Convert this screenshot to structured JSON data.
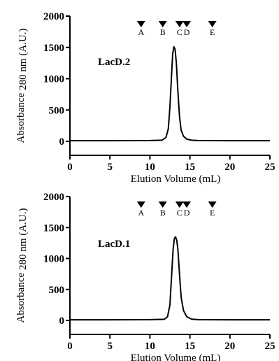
{
  "chart_data": [
    {
      "type": "line",
      "label": "LacD.2",
      "xlabel": "Elution Volume (mL)",
      "ylabel_main": "Absorbance",
      "ylabel_unit": "280 nm (A.U.)",
      "xlim": [
        0,
        25
      ],
      "ylim": [
        0,
        2000
      ],
      "x_ticks": [
        0,
        5,
        10,
        15,
        20,
        25
      ],
      "y_ticks": [
        0,
        500,
        1000,
        1500,
        2000
      ],
      "grid": false,
      "markers": [
        {
          "label": "A",
          "x": 8.9
        },
        {
          "label": "B",
          "x": 11.6
        },
        {
          "label": "C",
          "x": 13.7
        },
        {
          "label": "D",
          "x": 14.6
        },
        {
          "label": "E",
          "x": 17.8
        }
      ],
      "series": [
        {
          "x": [
            0,
            5,
            10,
            11.5,
            12.0,
            12.3,
            12.5,
            12.7,
            12.85,
            13.0,
            13.15,
            13.3,
            13.5,
            13.7,
            13.9,
            14.2,
            14.6,
            15.2,
            16,
            20,
            25
          ],
          "y": [
            10,
            10,
            12,
            18,
            60,
            200,
            550,
            1050,
            1400,
            1510,
            1470,
            1250,
            800,
            400,
            180,
            80,
            35,
            18,
            12,
            10,
            10
          ]
        }
      ]
    },
    {
      "type": "line",
      "label": "LacD.1",
      "xlabel": "Elution Volume (mL)",
      "ylabel_main": "Absorbance",
      "ylabel_unit": "280 nm (A.U.)",
      "xlim": [
        0,
        25
      ],
      "ylim": [
        0,
        2000
      ],
      "x_ticks": [
        0,
        5,
        10,
        15,
        20,
        25
      ],
      "y_ticks": [
        0,
        500,
        1000,
        1500,
        2000
      ],
      "grid": false,
      "markers": [
        {
          "label": "A",
          "x": 8.9
        },
        {
          "label": "B",
          "x": 11.6
        },
        {
          "label": "C",
          "x": 13.7
        },
        {
          "label": "D",
          "x": 14.6
        },
        {
          "label": "E",
          "x": 17.8
        }
      ],
      "series": [
        {
          "x": [
            0,
            5,
            10,
            11.8,
            12.2,
            12.5,
            12.7,
            12.9,
            13.05,
            13.2,
            13.35,
            13.5,
            13.7,
            13.9,
            14.2,
            14.6,
            15.2,
            16,
            20,
            25
          ],
          "y": [
            10,
            10,
            12,
            18,
            60,
            250,
            700,
            1150,
            1320,
            1350,
            1300,
            1150,
            750,
            380,
            160,
            60,
            22,
            12,
            10,
            10
          ]
        }
      ]
    }
  ]
}
